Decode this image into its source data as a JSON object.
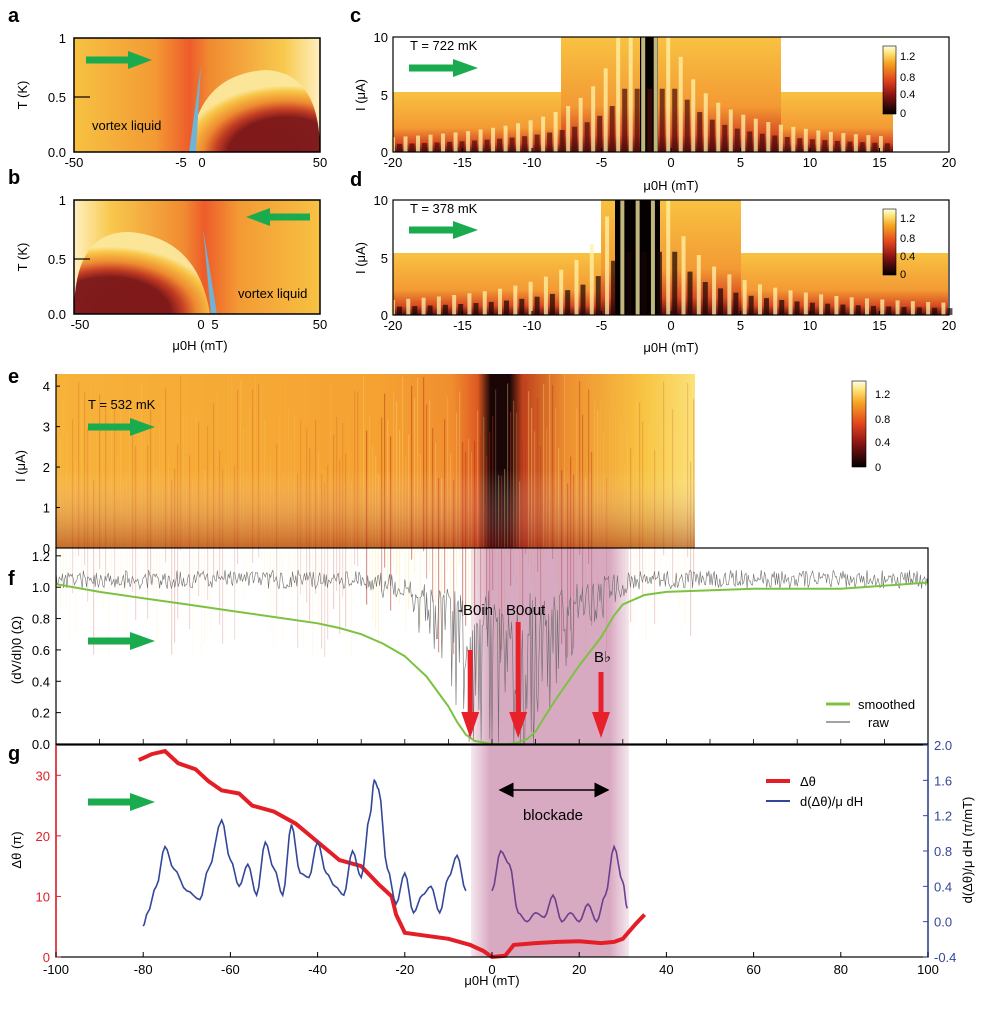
{
  "colors": {
    "arrow_green": "#1aab4f",
    "marker_red": "#e8202a",
    "dtheta_red": "#e41e26",
    "deriv_blue": "#33479a",
    "smoothed_green": "#7cc242",
    "raw_gray": "#6e6e6e",
    "blockade_band": "#b9648f",
    "phase_dark": "#7a1418",
    "phase_light": "#f6c23e",
    "boundary_blue": "#6fb3d6"
  },
  "panels": {
    "a": {
      "label": "a",
      "annotation": "vortex liquid",
      "xticks": [
        "-50",
        "-5",
        "0",
        "50"
      ],
      "yticks": [
        "0.0",
        "0.5",
        "1"
      ],
      "ylabel": "T (K)"
    },
    "b": {
      "label": "b",
      "annotation": "vortex liquid",
      "xticks": [
        "-50",
        "0",
        "5",
        "50"
      ],
      "yticks": [
        "0.0",
        "0.5",
        "1"
      ],
      "ylabel": "T (K)",
      "xlabel": "μ0H (mT)"
    },
    "c": {
      "label": "c",
      "temp": "T = 722 mK",
      "xticks": [
        "-20",
        "-15",
        "-10",
        "-5",
        "0",
        "5",
        "10",
        "15",
        "20"
      ],
      "yticks": [
        "0",
        "5",
        "10"
      ],
      "ylabel": "I (μA)",
      "xlabel": "μ0H (mT)",
      "cbar_ticks": [
        "1.2",
        "0.8",
        "0.4",
        "0"
      ]
    },
    "d": {
      "label": "d",
      "temp": "T = 378 mK",
      "xticks": [
        "-20",
        "-15",
        "-10",
        "-5",
        "0",
        "5",
        "10",
        "15",
        "20"
      ],
      "yticks": [
        "0",
        "5",
        "10"
      ],
      "ylabel": "I (μA)",
      "xlabel": "μ0H (mT)",
      "cbar_ticks": [
        "1.2",
        "0.8",
        "0.4",
        "0"
      ]
    },
    "e": {
      "label": "e",
      "temp": "T = 532 mK",
      "yticks": [
        "0",
        "1",
        "2",
        "3",
        "4"
      ],
      "ylabel": "I (μA)",
      "cbar_ticks": [
        "1.2",
        "0.8",
        "0.4",
        "0"
      ]
    },
    "f": {
      "label": "f",
      "yticks": [
        "0.0",
        "0.2",
        "0.4",
        "0.6",
        "0.8",
        "1.0",
        "1.2"
      ],
      "ylabel": "(dV/dI)0 (Ω)",
      "marker_b_in": "-B0in",
      "marker_b_out": "B0out",
      "marker_b_flat": "B♭",
      "legend": [
        "smoothed",
        "raw"
      ]
    },
    "g": {
      "label": "g",
      "yticks_left": [
        "0",
        "10",
        "20",
        "30"
      ],
      "yticks_right": [
        "-0.4",
        "0.0",
        "0.4",
        "0.8",
        "1.2",
        "1.6",
        "2.0"
      ],
      "ylabel_left": "Δθ (π)",
      "ylabel_right": "d(Δθ)/μ dH (π/mT)",
      "xticks": [
        "-100",
        "-80",
        "-60",
        "-40",
        "-20",
        "0",
        "20",
        "40",
        "60",
        "80",
        "100"
      ],
      "xlabel": "μ0H (mT)",
      "blockade": "blockade",
      "legend": [
        "Δθ",
        "d(Δθ)/μ dH"
      ]
    }
  },
  "chart_data": [
    {
      "panel": "a",
      "type": "heatmap",
      "x_range": [
        -50,
        50
      ],
      "y_range": [
        0,
        1
      ],
      "xlabel": "μ0H (mT)",
      "ylabel": "T (K)",
      "sweep_direction": "up",
      "boundary_field_mT": -5,
      "annotation": "vortex liquid"
    },
    {
      "panel": "b",
      "type": "heatmap",
      "x_range": [
        -50,
        50
      ],
      "y_range": [
        0,
        1
      ],
      "xlabel": "μ0H (mT)",
      "ylabel": "T (K)",
      "sweep_direction": "down",
      "boundary_field_mT": 5,
      "annotation": "vortex liquid"
    },
    {
      "panel": "c",
      "type": "heatmap",
      "x_range": [
        -20,
        20
      ],
      "y_range": [
        0,
        10
      ],
      "xlabel": "μ0H (mT)",
      "ylabel": "I (μA)",
      "temperature": "722 mK",
      "sweep_direction": "up",
      "colorbar_range": [
        0,
        1.2
      ]
    },
    {
      "panel": "d",
      "type": "heatmap",
      "x_range": [
        -20,
        20
      ],
      "y_range": [
        0,
        10
      ],
      "xlabel": "μ0H (mT)",
      "ylabel": "I (μA)",
      "temperature": "378 mK",
      "sweep_direction": "up",
      "colorbar_range": [
        0,
        1.2
      ]
    },
    {
      "panel": "e",
      "type": "heatmap",
      "x_range": [
        -100,
        47
      ],
      "y_range": [
        0,
        4.3
      ],
      "ylabel": "I (μA)",
      "temperature": "532 mK",
      "sweep_direction": "up",
      "colorbar_range": [
        0,
        1.2
      ]
    },
    {
      "panel": "f",
      "type": "line",
      "x_range": [
        -100,
        100
      ],
      "ylim": [
        0,
        1.25
      ],
      "ylabel": "(dV/dI)0 (Ω)",
      "series": [
        {
          "name": "smoothed",
          "x": [
            -100,
            -90,
            -80,
            -70,
            -60,
            -50,
            -40,
            -35,
            -30,
            -25,
            -20,
            -15,
            -10,
            -8,
            -6,
            -4,
            -2,
            0,
            2,
            4,
            6,
            8,
            10,
            12,
            15,
            20,
            25,
            28,
            30,
            35,
            40,
            60,
            80,
            100
          ],
          "y": [
            1.02,
            0.97,
            0.93,
            0.89,
            0.85,
            0.81,
            0.77,
            0.74,
            0.7,
            0.64,
            0.56,
            0.43,
            0.24,
            0.14,
            0.06,
            0.02,
            0.01,
            0.0,
            0.0,
            0.0,
            0.01,
            0.03,
            0.08,
            0.17,
            0.3,
            0.5,
            0.68,
            0.82,
            0.89,
            0.95,
            0.97,
            0.99,
            0.99,
            1.03
          ]
        },
        {
          "name": "raw",
          "x_range": [
            -100,
            100
          ],
          "mean": 1.05,
          "note": "noisy trace with deep dips near 0 mT"
        }
      ],
      "markers": [
        {
          "label": "-B0in",
          "x": -5
        },
        {
          "label": "B0out",
          "x": 6
        },
        {
          "label": "B♭",
          "x": 25
        }
      ],
      "blockade_band_mT": [
        -5,
        31
      ]
    },
    {
      "panel": "g",
      "type": "line",
      "x_range": [
        -100,
        100
      ],
      "xlabel": "μ0H (mT)",
      "series": [
        {
          "name": "Δθ",
          "axis": "left",
          "ylim": [
            0,
            35
          ],
          "x": [
            -81,
            -78,
            -75,
            -72,
            -68,
            -65,
            -62,
            -58,
            -55,
            -50,
            -45,
            -40,
            -35,
            -30,
            -26,
            -23,
            -22,
            -20,
            -15,
            -10,
            -5,
            -2,
            0,
            3,
            5,
            10,
            15,
            20,
            25,
            28,
            30,
            33,
            35
          ],
          "y": [
            32.5,
            33.5,
            34,
            32,
            31,
            29,
            27.5,
            27,
            25,
            24,
            22,
            19,
            16,
            15,
            12,
            10,
            7,
            4,
            3.5,
            3,
            2,
            1,
            0,
            0.2,
            2,
            2.3,
            2.5,
            2.6,
            2.3,
            2.5,
            3,
            5.5,
            7
          ]
        },
        {
          "name": "d(Δθ)/μ dH",
          "axis": "right",
          "ylim": [
            -0.4,
            2.0
          ],
          "segments": [
            {
              "x": [
                -80,
                -79,
                -77,
                -75,
                -73,
                -70,
                -67,
                -65,
                -62,
                -60,
                -58,
                -56,
                -54,
                -52,
                -50,
                -48,
                -46,
                -44,
                -42,
                -40,
                -38,
                -36,
                -34,
                -32,
                -30,
                -28,
                -27,
                -26,
                -24,
                -22,
                -20,
                -18,
                -16,
                -14,
                -12,
                -10,
                -8,
                -6
              ],
              "y": [
                -0.05,
                0.1,
                0.4,
                0.85,
                0.6,
                0.35,
                0.25,
                0.6,
                1.15,
                0.7,
                0.4,
                0.65,
                0.3,
                0.9,
                0.6,
                0.3,
                1.1,
                0.55,
                0.5,
                0.9,
                0.55,
                0.4,
                0.3,
                0.8,
                0.5,
                1.2,
                1.6,
                1.5,
                0.6,
                0.2,
                0.55,
                0.1,
                0.3,
                0.4,
                0.1,
                0.5,
                0.75,
                0.35
              ]
            },
            {
              "x": [
                0,
                2,
                4,
                6,
                8,
                10,
                12,
                14,
                16,
                18,
                20,
                22,
                24,
                26,
                28,
                30,
                31
              ],
              "y": [
                0.35,
                0.8,
                0.65,
                0.1,
                0.0,
                0.1,
                0.05,
                0.3,
                0.0,
                0.1,
                0.0,
                0.2,
                0.0,
                0.3,
                0.85,
                0.45,
                0.15
              ]
            }
          ]
        }
      ],
      "blockade_range_mT": [
        0,
        27
      ]
    }
  ]
}
